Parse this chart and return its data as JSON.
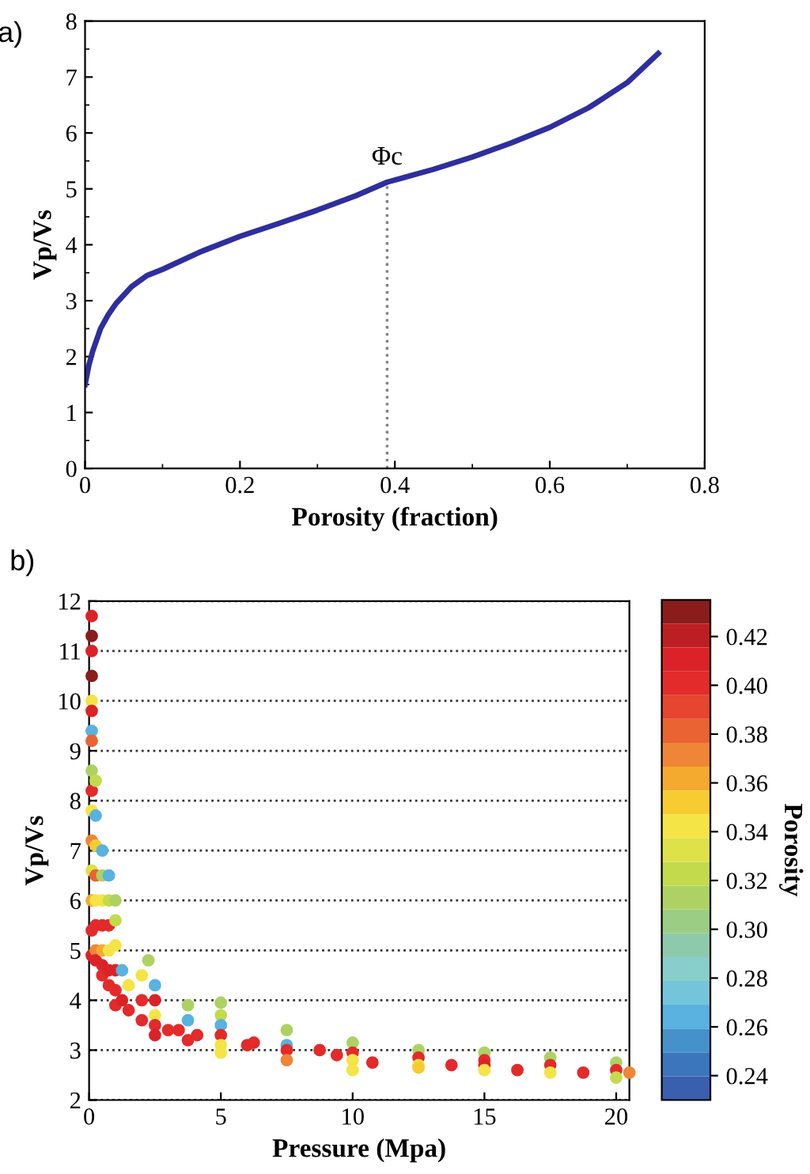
{
  "chart_data": [
    {
      "type": "line",
      "xlabel": "Porosity (fraction)",
      "ylabel": "Vp/Vs",
      "annotations": [
        "a)",
        {
          "text": "Φc",
          "x": 0.39,
          "y": 5.1
        }
      ],
      "xlim": [
        0,
        0.8
      ],
      "xticks": [
        0,
        0.2,
        0.4,
        0.6,
        0.8
      ],
      "ylim": [
        0,
        8
      ],
      "yticks": [
        0,
        1,
        2,
        3,
        4,
        5,
        6,
        7,
        8
      ],
      "grid": false,
      "marker": "none",
      "series": [
        {
          "color": "#2e2e9e",
          "line_style": "solid",
          "x": [
            0,
            0.005,
            0.01,
            0.02,
            0.03,
            0.04,
            0.06,
            0.08,
            0.1,
            0.15,
            0.2,
            0.25,
            0.3,
            0.35,
            0.39,
            0.45,
            0.5,
            0.55,
            0.6,
            0.65,
            0.7,
            0.74
          ],
          "values": [
            1.5,
            1.85,
            2.1,
            2.5,
            2.75,
            2.95,
            3.25,
            3.45,
            3.56,
            3.88,
            4.15,
            4.38,
            4.62,
            4.88,
            5.12,
            5.35,
            5.57,
            5.82,
            6.1,
            6.45,
            6.9,
            7.42
          ]
        },
        {
          "color": "#808080",
          "line_style": "dotted",
          "x": [
            0.39,
            0.39
          ],
          "values": [
            0,
            5.12
          ]
        }
      ]
    },
    {
      "type": "scatter",
      "xlabel": "Pressure (Mpa)",
      "ylabel": "Vp/Vs",
      "clabel": "Porosity",
      "annotations": [
        "b)"
      ],
      "xlim": [
        0,
        20.5
      ],
      "xticks": [
        0,
        5,
        10,
        15,
        20
      ],
      "ylim": [
        2,
        12
      ],
      "yticks": [
        2,
        3,
        4,
        5,
        6,
        7,
        8,
        9,
        10,
        11,
        12
      ],
      "grid": "y",
      "marker": "circle",
      "clim": [
        0.23,
        0.435
      ],
      "cticks": [
        {
          "value": 0.24,
          "label": "0.24"
        },
        {
          "value": 0.26,
          "label": "0.26"
        },
        {
          "value": 0.28,
          "label": "0.28"
        },
        {
          "value": 0.3,
          "label": "0.30"
        },
        {
          "value": 0.32,
          "label": "0.32"
        },
        {
          "value": 0.34,
          "label": "0.34"
        },
        {
          "value": 0.36,
          "label": "0.36"
        },
        {
          "value": 0.38,
          "label": "0.38"
        },
        {
          "value": 0.4,
          "label": "0.40"
        },
        {
          "value": 0.42,
          "label": "0.42"
        }
      ],
      "x": [
        0.1,
        0.1,
        0.1,
        0.1,
        0.1,
        0.1,
        0.1,
        0.1,
        0.1,
        0.1,
        0.1,
        0.1,
        0.1,
        0.1,
        0.1,
        0.1,
        0.25,
        0.25,
        0.25,
        0.25,
        0.25,
        0.25,
        0.25,
        0.25,
        0.5,
        0.5,
        0.5,
        0.5,
        0.5,
        0.5,
        0.5,
        0.75,
        0.75,
        0.75,
        0.75,
        0.75,
        0.75,
        1.0,
        1.0,
        1.0,
        1.0,
        1.0,
        1.0,
        1.25,
        1.25,
        1.5,
        1.5,
        2.0,
        2.0,
        2.0,
        2.25,
        2.5,
        2.5,
        2.5,
        2.5,
        2.5,
        3.0,
        3.4,
        3.75,
        3.75,
        3.75,
        4.1,
        5.0,
        5.0,
        5.0,
        5.0,
        5.0,
        5.0,
        6.0,
        6.25,
        7.5,
        7.5,
        7.5,
        7.5,
        8.75,
        9.4,
        10.0,
        10.0,
        10.0,
        10.0,
        10.75,
        12.5,
        12.5,
        12.5,
        12.5,
        13.75,
        15.0,
        15.0,
        15.0,
        15.0,
        16.25,
        17.5,
        17.5,
        17.5,
        18.75,
        20.0,
        20.0,
        20.0,
        20.5
      ],
      "values": [
        11.7,
        11.3,
        11.0,
        10.5,
        10.0,
        9.8,
        9.4,
        9.2,
        8.6,
        8.2,
        7.8,
        7.2,
        6.6,
        6.0,
        5.4,
        4.9,
        8.4,
        7.7,
        7.1,
        6.5,
        6.0,
        5.5,
        5.0,
        4.8,
        7.0,
        6.5,
        6.0,
        5.5,
        5.0,
        4.7,
        4.5,
        6.5,
        6.0,
        5.5,
        5.0,
        4.6,
        4.3,
        6.0,
        5.6,
        5.1,
        4.6,
        4.2,
        3.9,
        4.6,
        4.0,
        4.3,
        3.8,
        4.5,
        4.0,
        3.6,
        4.8,
        4.3,
        4.0,
        3.7,
        3.5,
        3.3,
        3.4,
        3.4,
        3.9,
        3.6,
        3.2,
        3.3,
        3.95,
        3.7,
        3.5,
        3.3,
        3.1,
        2.95,
        3.1,
        3.15,
        3.4,
        3.1,
        3.0,
        2.8,
        3.0,
        2.9,
        3.15,
        2.95,
        2.8,
        2.6,
        2.75,
        3.0,
        2.85,
        2.7,
        2.65,
        2.7,
        2.95,
        2.8,
        2.7,
        2.6,
        2.6,
        2.85,
        2.7,
        2.55,
        2.55,
        2.75,
        2.6,
        2.45,
        2.55
      ],
      "cvalues": [
        0.41,
        0.43,
        0.41,
        0.43,
        0.34,
        0.41,
        0.26,
        0.38,
        0.31,
        0.4,
        0.34,
        0.37,
        0.33,
        0.36,
        0.4,
        0.41,
        0.32,
        0.26,
        0.35,
        0.38,
        0.34,
        0.4,
        0.37,
        0.41,
        0.26,
        0.31,
        0.34,
        0.4,
        0.36,
        0.41,
        0.4,
        0.26,
        0.32,
        0.4,
        0.34,
        0.41,
        0.4,
        0.31,
        0.32,
        0.34,
        0.41,
        0.4,
        0.4,
        0.26,
        0.41,
        0.34,
        0.4,
        0.34,
        0.4,
        0.4,
        0.31,
        0.26,
        0.41,
        0.34,
        0.4,
        0.41,
        0.4,
        0.4,
        0.31,
        0.26,
        0.4,
        0.4,
        0.31,
        0.32,
        0.26,
        0.4,
        0.34,
        0.34,
        0.4,
        0.4,
        0.31,
        0.26,
        0.4,
        0.37,
        0.4,
        0.4,
        0.31,
        0.4,
        0.34,
        0.34,
        0.4,
        0.31,
        0.4,
        0.34,
        0.35,
        0.4,
        0.31,
        0.4,
        0.41,
        0.34,
        0.4,
        0.31,
        0.4,
        0.34,
        0.4,
        0.31,
        0.4,
        0.32,
        0.37
      ]
    }
  ]
}
